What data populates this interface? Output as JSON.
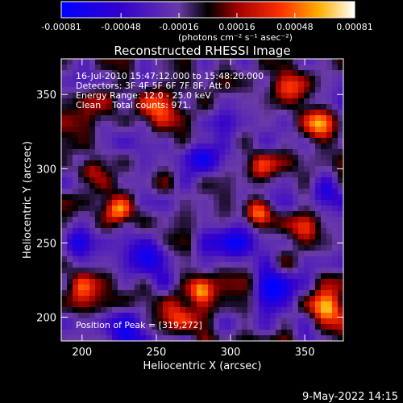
{
  "colorbar": {
    "ticks": [
      "-0.00081",
      "-0.00048",
      "-0.00016",
      "0.00016",
      "0.00048",
      "0.00081"
    ],
    "range": [
      -0.00081,
      0.00081
    ],
    "colormap": "rhessi-blue-purple-red-yellow-white",
    "units_label": "(photons cm⁻² s⁻¹ asec⁻²)"
  },
  "chart_data": {
    "type": "heatmap",
    "title": "Reconstructed RHESSI Image",
    "xlabel": "Heliocentric X (arcsec)",
    "ylabel": "Heliocentric Y (arcsec)",
    "xlim": [
      186,
      376
    ],
    "ylim": [
      184,
      374
    ],
    "xticks": [
      200,
      250,
      300,
      350
    ],
    "yticks": [
      200,
      250,
      300,
      350
    ],
    "zlim": [
      -0.00081,
      0.00081
    ],
    "peak_xy": [
      319,
      272
    ],
    "blobs": [
      {
        "x": 319,
        "y": 272,
        "amp": 0.00081,
        "r": 9
      },
      {
        "x": 225,
        "y": 272,
        "amp": 0.0007,
        "r": 9
      },
      {
        "x": 250,
        "y": 340,
        "amp": 0.0006,
        "r": 14
      },
      {
        "x": 215,
        "y": 345,
        "amp": 0.00055,
        "r": 10
      },
      {
        "x": 360,
        "y": 330,
        "amp": 0.00065,
        "r": 10
      },
      {
        "x": 340,
        "y": 352,
        "amp": 0.0005,
        "r": 12
      },
      {
        "x": 265,
        "y": 205,
        "amp": 0.0005,
        "r": 12
      },
      {
        "x": 280,
        "y": 218,
        "amp": 0.0006,
        "r": 8
      },
      {
        "x": 365,
        "y": 205,
        "amp": 0.0006,
        "r": 12
      },
      {
        "x": 320,
        "y": 300,
        "amp": 0.0004,
        "r": 10
      },
      {
        "x": 205,
        "y": 300,
        "amp": 0.00045,
        "r": 8
      },
      {
        "x": 350,
        "y": 260,
        "amp": 0.0004,
        "r": 9
      },
      {
        "x": 200,
        "y": 220,
        "amp": 0.0004,
        "r": 9
      },
      {
        "x": 245,
        "y": 240,
        "amp": -0.0006,
        "r": 14
      },
      {
        "x": 300,
        "y": 250,
        "amp": -0.00055,
        "r": 12
      },
      {
        "x": 280,
        "y": 310,
        "amp": -0.0005,
        "r": 14
      },
      {
        "x": 230,
        "y": 195,
        "amp": -0.0005,
        "r": 12
      },
      {
        "x": 330,
        "y": 220,
        "amp": -0.0005,
        "r": 12
      },
      {
        "x": 195,
        "y": 250,
        "amp": -0.0005,
        "r": 10
      },
      {
        "x": 365,
        "y": 285,
        "amp": -0.0004,
        "r": 10
      }
    ]
  },
  "info": {
    "line1": "16-Jul-2010 15:47:12.000 to 15:48:20.000",
    "line2": "Detectors: 3F 4F 5F 6F 7F 8F, Att 0",
    "line3": "Energy Range: 12.0 - 25.0 keV",
    "line4": "Clean    Total counts: 971."
  },
  "peak_label": "Position of Peak = [319,272]",
  "timestamp": "9-May-2022 14:15"
}
